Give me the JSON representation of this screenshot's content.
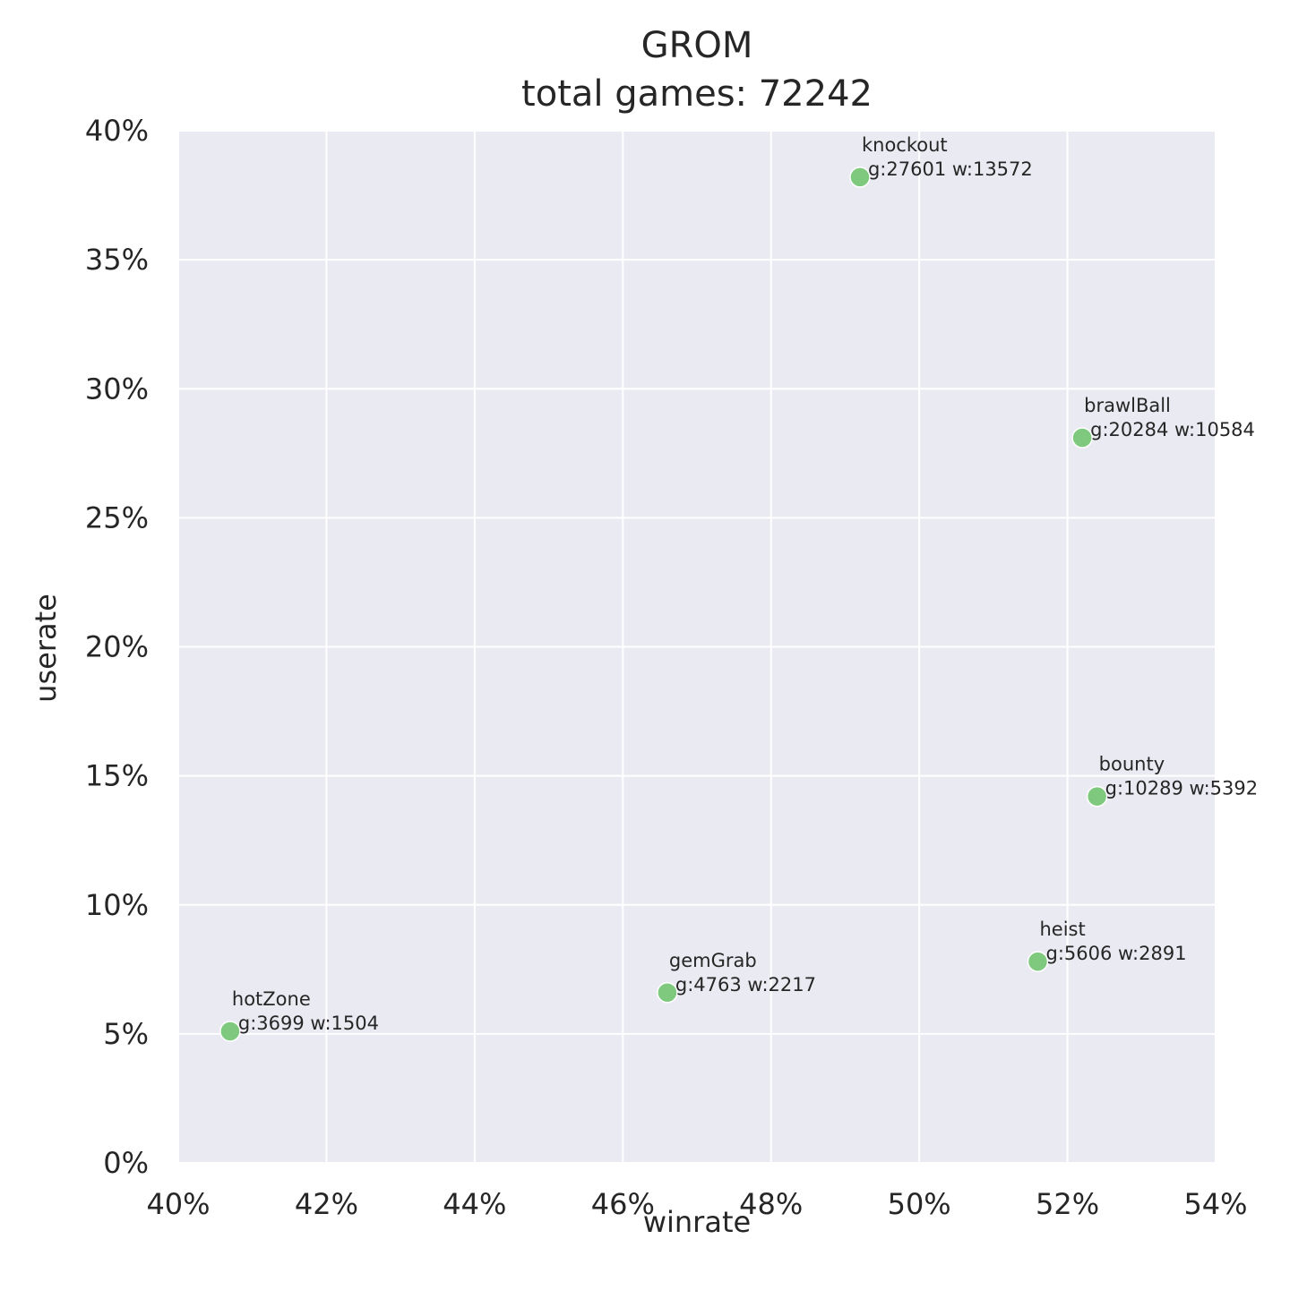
{
  "chart_data": {
    "type": "scatter",
    "title": "GROM",
    "subtitle": "total games: 72242",
    "xlabel": "winrate",
    "ylabel": "userate",
    "xlim": [
      40,
      54
    ],
    "ylim": [
      0,
      40
    ],
    "x_ticks": [
      {
        "value": 40,
        "label": "40%"
      },
      {
        "value": 42,
        "label": "42%"
      },
      {
        "value": 44,
        "label": "44%"
      },
      {
        "value": 46,
        "label": "46%"
      },
      {
        "value": 48,
        "label": "48%"
      },
      {
        "value": 50,
        "label": "50%"
      },
      {
        "value": 52,
        "label": "52%"
      },
      {
        "value": 54,
        "label": "54%"
      }
    ],
    "y_ticks": [
      {
        "value": 0,
        "label": "0%"
      },
      {
        "value": 5,
        "label": "5%"
      },
      {
        "value": 10,
        "label": "10%"
      },
      {
        "value": 15,
        "label": "15%"
      },
      {
        "value": 20,
        "label": "20%"
      },
      {
        "value": 25,
        "label": "25%"
      },
      {
        "value": 30,
        "label": "30%"
      },
      {
        "value": 35,
        "label": "35%"
      },
      {
        "value": 40,
        "label": "40%"
      }
    ],
    "grid": true,
    "point_color": "#7fc97f",
    "background_color": "#eaeaf2",
    "points": [
      {
        "name": "knockout",
        "stats": "g:27601 w:13572",
        "x": 49.2,
        "y": 38.2
      },
      {
        "name": "brawlBall",
        "stats": "g:20284 w:10584",
        "x": 52.2,
        "y": 28.1
      },
      {
        "name": "bounty",
        "stats": "g:10289 w:5392",
        "x": 52.4,
        "y": 14.2
      },
      {
        "name": "heist",
        "stats": "g:5606 w:2891",
        "x": 51.6,
        "y": 7.8
      },
      {
        "name": "gemGrab",
        "stats": "g:4763 w:2217",
        "x": 46.6,
        "y": 6.6
      },
      {
        "name": "hotZone",
        "stats": "g:3699 w:1504",
        "x": 40.7,
        "y": 5.1
      }
    ]
  }
}
